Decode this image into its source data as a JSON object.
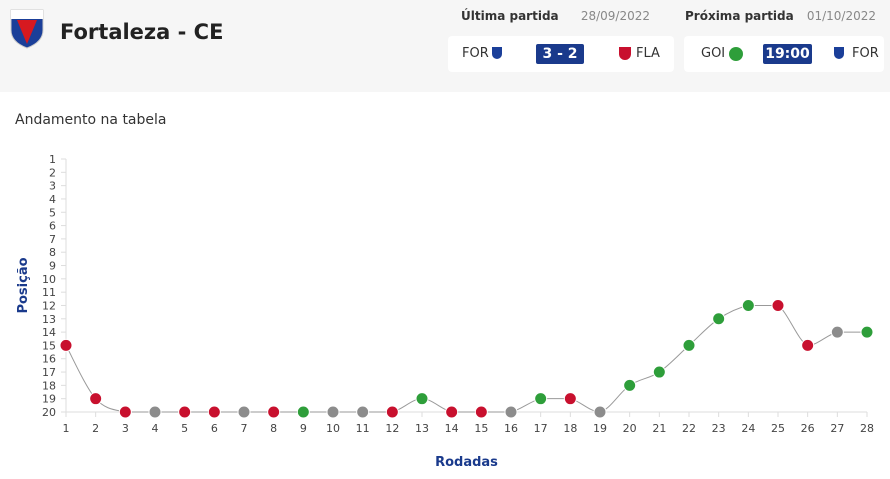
{
  "header": {
    "team": "Fortaleza - CE",
    "last_match": {
      "label": "Última partida",
      "date": "28/09/2022",
      "home": "FOR",
      "score": "3 - 2",
      "away": "FLA"
    },
    "next_match": {
      "label": "Próxima partida",
      "date": "01/10/2022",
      "home": "GOI",
      "time": "19:00",
      "away": "FOR"
    }
  },
  "chart_data": {
    "type": "line",
    "title": "Andamento na tabela",
    "x_label": "Rodadas",
    "y_label": "Posição",
    "x": [
      1,
      2,
      3,
      4,
      5,
      6,
      7,
      8,
      9,
      10,
      11,
      12,
      13,
      14,
      15,
      16,
      17,
      18,
      19,
      20,
      21,
      22,
      23,
      24,
      25,
      26,
      27,
      28
    ],
    "values": [
      15,
      19,
      20,
      20,
      20,
      20,
      20,
      20,
      20,
      20,
      20,
      20,
      19,
      20,
      20,
      20,
      19,
      19,
      20,
      18,
      17,
      15,
      13,
      12,
      12,
      15,
      14,
      14
    ],
    "point_colors": [
      "#c8102e",
      "#c8102e",
      "#c8102e",
      "#8c8c8c",
      "#c8102e",
      "#c8102e",
      "#8c8c8c",
      "#c8102e",
      "#2e9e3a",
      "#8c8c8c",
      "#8c8c8c",
      "#c8102e",
      "#2e9e3a",
      "#c8102e",
      "#c8102e",
      "#8c8c8c",
      "#2e9e3a",
      "#c8102e",
      "#8c8c8c",
      "#2e9e3a",
      "#2e9e3a",
      "#2e9e3a",
      "#2e9e3a",
      "#2e9e3a",
      "#c8102e",
      "#c8102e",
      "#8c8c8c",
      "#2e9e3a"
    ],
    "line_color": "#999999",
    "xlim": [
      1,
      28
    ],
    "xticks": [
      1,
      2,
      3,
      4,
      5,
      6,
      7,
      8,
      9,
      10,
      11,
      12,
      13,
      14,
      15,
      16,
      17,
      18,
      19,
      20,
      21,
      22,
      23,
      24,
      25,
      26,
      27,
      28
    ],
    "ylim": [
      20,
      1
    ],
    "yticks": [
      1,
      2,
      3,
      4,
      5,
      6,
      7,
      8,
      9,
      10,
      11,
      12,
      13,
      14,
      15,
      16,
      17,
      18,
      19,
      20
    ]
  }
}
